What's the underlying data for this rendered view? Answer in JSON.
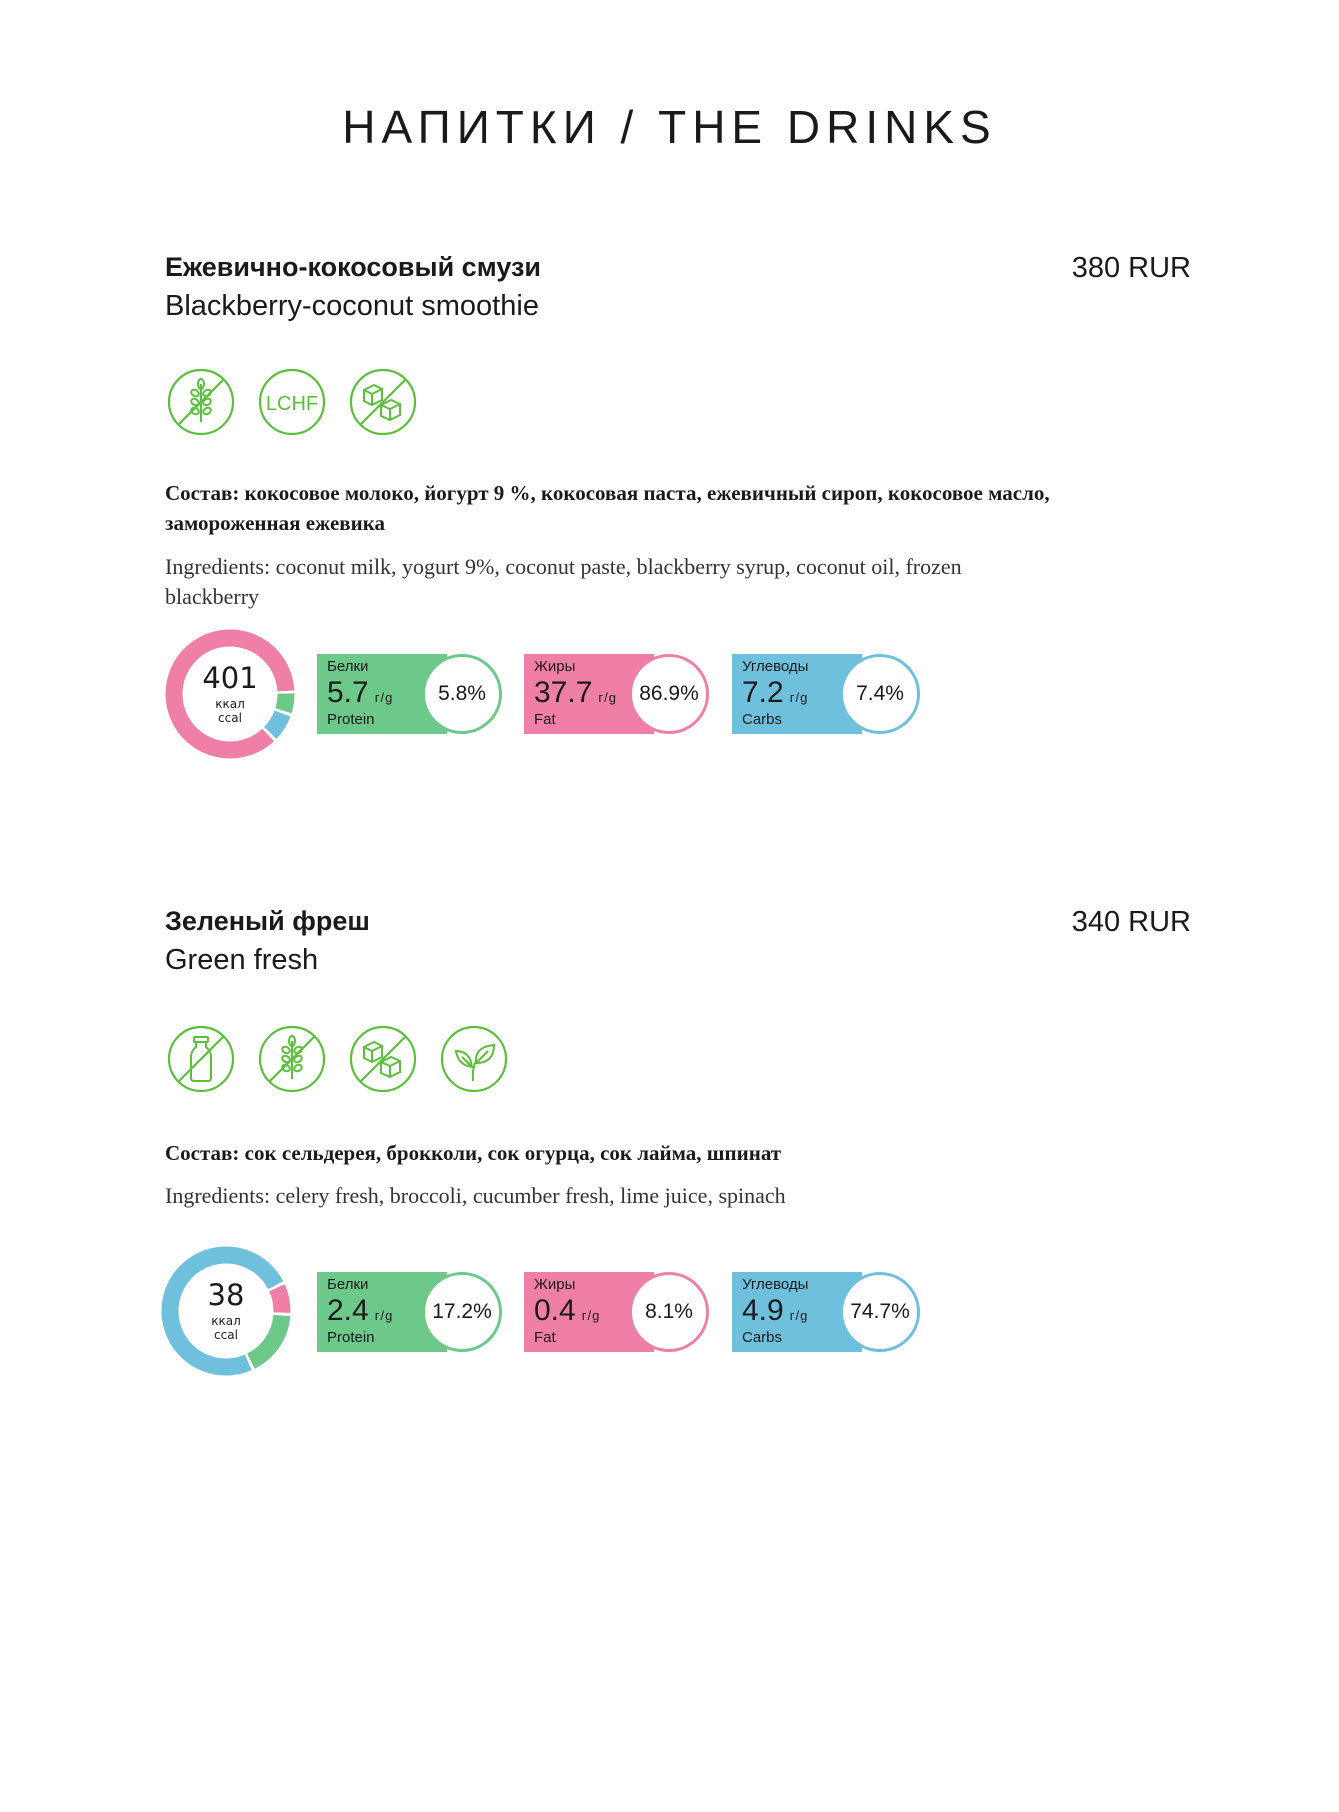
{
  "title": "НАПИТКИ / THE DRINKS",
  "colors": {
    "protein": "#6cc98a",
    "fat": "#f07fa8",
    "carbs": "#6fc0dc",
    "icon": "#5bbf3c"
  },
  "items": [
    {
      "name_ru": "Ежевично-кокосовый смузи",
      "name_en": "Blackberry-coconut smoothie",
      "price": "380 RUR",
      "icons": [
        "no-gluten-icon",
        "lchf-icon",
        "no-sugar-icon"
      ],
      "lchf_label": "LCHF",
      "composition": "Состав: кокосовое молоко, йогурт 9 %, кокосовая паста, ежевичный сироп, кокосовое масло, замороженная ежевика",
      "ingredients": "Ingredients: coconut milk, yogurt 9%, coconut paste, blackberry syrup, coconut oil, frozen blackberry",
      "kcal": "401",
      "kcal_ru": "ккал",
      "kcal_en": "ccal",
      "protein": {
        "label_ru": "Белки",
        "value": "5.7",
        "unit": "г/g",
        "label_en": "Protein",
        "percent": "5.8%"
      },
      "fat": {
        "label_ru": "Жиры",
        "value": "37.7",
        "unit": "г/g",
        "label_en": "Fat",
        "percent": "86.9%"
      },
      "carbs": {
        "label_ru": "Углеводы",
        "value": "7.2",
        "unit": "г/g",
        "label_en": "Carbs",
        "percent": "7.4%"
      }
    },
    {
      "name_ru": "Зеленый фреш",
      "name_en": "Green fresh",
      "price": "340 RUR",
      "icons": [
        "no-dairy-icon",
        "no-gluten-icon",
        "no-sugar-icon",
        "vegan-leaf-icon"
      ],
      "composition": "Состав: сок сельдерея, брокколи, сок огурца, сок лайма, шпинат",
      "ingredients": "Ingredients: celery fresh, broccoli, cucumber fresh, lime juice, spinach",
      "kcal": "38",
      "kcal_ru": "ккал",
      "kcal_en": "ccal",
      "protein": {
        "label_ru": "Белки",
        "value": "2.4",
        "unit": "г/g",
        "label_en": "Protein",
        "percent": "17.2%"
      },
      "fat": {
        "label_ru": "Жиры",
        "value": "0.4",
        "unit": "г/g",
        "label_en": "Fat",
        "percent": "8.1%"
      },
      "carbs": {
        "label_ru": "Углеводы",
        "value": "4.9",
        "unit": "г/g",
        "label_en": "Carbs",
        "percent": "74.7%"
      }
    }
  ]
}
